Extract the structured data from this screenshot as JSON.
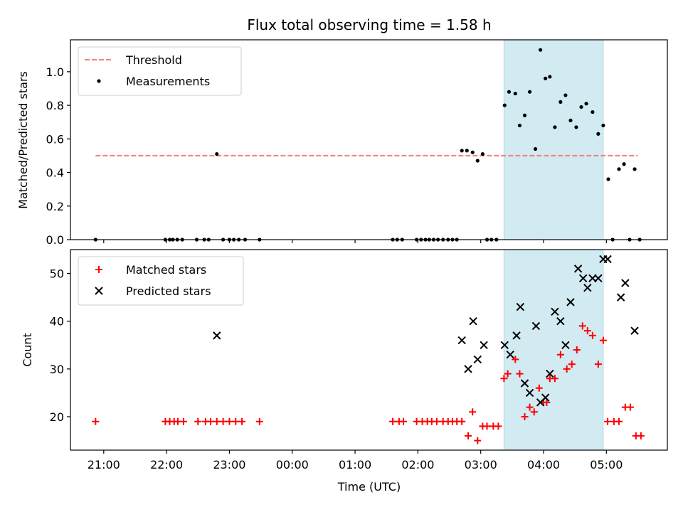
{
  "chart_data": {
    "title": "Flux total observing time = 1.58 h",
    "xlabel": "Time (UTC)",
    "x_unit": "hours (UTC clock, values past 24 wrap past midnight)",
    "x_range": [
      20.47,
      29.97
    ],
    "x_ticks": [
      {
        "value": 21,
        "label": "21:00"
      },
      {
        "value": 22,
        "label": "22:00"
      },
      {
        "value": 23,
        "label": "23:00"
      },
      {
        "value": 24,
        "label": "00:00"
      },
      {
        "value": 25,
        "label": "01:00"
      },
      {
        "value": 26,
        "label": "02:00"
      },
      {
        "value": 27,
        "label": "03:00"
      },
      {
        "value": 28,
        "label": "04:00"
      },
      {
        "value": 29,
        "label": "05:00"
      }
    ],
    "shaded_interval": [
      27.37,
      28.95
    ],
    "shade_color": "#add8e6",
    "panels": [
      {
        "type": "scatter",
        "ylabel": "Matched/Predicted stars",
        "ylim": [
          0,
          1.19
        ],
        "y_ticks": [
          {
            "value": 0.0,
            "label": "0.0"
          },
          {
            "value": 0.2,
            "label": "0.2"
          },
          {
            "value": 0.4,
            "label": "0.4"
          },
          {
            "value": 0.6,
            "label": "0.6"
          },
          {
            "value": 0.8,
            "label": "0.8"
          },
          {
            "value": 1.0,
            "label": "1.0"
          }
        ],
        "legend": "upper left",
        "threshold": {
          "name": "Threshold",
          "y": 0.5,
          "x_range": [
            20.87,
            29.5
          ],
          "color": "#f47f7f"
        },
        "series": [
          {
            "name": "Measurements",
            "marker": "dot",
            "color": "#000000",
            "points": [
              [
                20.87,
                0.0
              ],
              [
                21.98,
                0.0
              ],
              [
                22.05,
                0.0
              ],
              [
                22.1,
                0.0
              ],
              [
                22.17,
                0.0
              ],
              [
                22.25,
                0.0
              ],
              [
                22.48,
                0.0
              ],
              [
                22.6,
                0.0
              ],
              [
                22.67,
                0.0
              ],
              [
                22.8,
                0.51
              ],
              [
                22.9,
                0.0
              ],
              [
                23.0,
                0.0
              ],
              [
                23.07,
                0.0
              ],
              [
                23.15,
                0.0
              ],
              [
                23.25,
                0.0
              ],
              [
                23.48,
                0.0
              ],
              [
                25.6,
                0.0
              ],
              [
                25.67,
                0.0
              ],
              [
                25.75,
                0.0
              ],
              [
                25.98,
                0.0
              ],
              [
                26.05,
                0.0
              ],
              [
                26.12,
                0.0
              ],
              [
                26.18,
                0.0
              ],
              [
                26.25,
                0.0
              ],
              [
                26.32,
                0.0
              ],
              [
                26.4,
                0.0
              ],
              [
                26.48,
                0.0
              ],
              [
                26.55,
                0.0
              ],
              [
                26.62,
                0.0
              ],
              [
                26.7,
                0.53
              ],
              [
                26.78,
                0.53
              ],
              [
                26.87,
                0.52
              ],
              [
                26.95,
                0.47
              ],
              [
                27.03,
                0.51
              ],
              [
                27.1,
                0.0
              ],
              [
                27.17,
                0.0
              ],
              [
                27.25,
                0.0
              ],
              [
                27.38,
                0.8
              ],
              [
                27.45,
                0.88
              ],
              [
                27.55,
                0.87
              ],
              [
                27.62,
                0.68
              ],
              [
                27.7,
                0.74
              ],
              [
                27.78,
                0.88
              ],
              [
                27.87,
                0.54
              ],
              [
                27.95,
                1.13
              ],
              [
                28.03,
                0.96
              ],
              [
                28.1,
                0.97
              ],
              [
                28.18,
                0.67
              ],
              [
                28.27,
                0.82
              ],
              [
                28.35,
                0.86
              ],
              [
                28.43,
                0.71
              ],
              [
                28.52,
                0.67
              ],
              [
                28.6,
                0.79
              ],
              [
                28.68,
                0.81
              ],
              [
                28.78,
                0.76
              ],
              [
                28.87,
                0.63
              ],
              [
                28.95,
                0.68
              ],
              [
                29.03,
                0.36
              ],
              [
                29.1,
                0.0
              ],
              [
                29.2,
                0.42
              ],
              [
                29.28,
                0.45
              ],
              [
                29.37,
                0.0
              ],
              [
                29.45,
                0.42
              ],
              [
                29.53,
                0.0
              ]
            ]
          }
        ]
      },
      {
        "type": "scatter",
        "ylabel": "Count",
        "ylim": [
          13.0,
          55.0
        ],
        "y_ticks": [
          {
            "value": 20,
            "label": "20"
          },
          {
            "value": 30,
            "label": "30"
          },
          {
            "value": 40,
            "label": "40"
          },
          {
            "value": 50,
            "label": "50"
          }
        ],
        "legend": "upper left",
        "series": [
          {
            "name": "Matched stars",
            "marker": "plus",
            "color": "#ff0000",
            "points": [
              [
                20.87,
                19
              ],
              [
                21.98,
                19
              ],
              [
                22.05,
                19
              ],
              [
                22.12,
                19
              ],
              [
                22.18,
                19
              ],
              [
                22.27,
                19
              ],
              [
                22.5,
                19
              ],
              [
                22.62,
                19
              ],
              [
                22.7,
                19
              ],
              [
                22.8,
                19
              ],
              [
                22.9,
                19
              ],
              [
                23.0,
                19
              ],
              [
                23.1,
                19
              ],
              [
                23.2,
                19
              ],
              [
                23.48,
                19
              ],
              [
                25.6,
                19
              ],
              [
                25.7,
                19
              ],
              [
                25.77,
                19
              ],
              [
                25.98,
                19
              ],
              [
                26.07,
                19
              ],
              [
                26.15,
                19
              ],
              [
                26.22,
                19
              ],
              [
                26.3,
                19
              ],
              [
                26.4,
                19
              ],
              [
                26.48,
                19
              ],
              [
                26.55,
                19
              ],
              [
                26.62,
                19
              ],
              [
                26.7,
                19
              ],
              [
                26.8,
                16
              ],
              [
                26.87,
                21
              ],
              [
                26.95,
                15
              ],
              [
                27.03,
                18
              ],
              [
                27.1,
                18
              ],
              [
                27.2,
                18
              ],
              [
                27.28,
                18
              ],
              [
                27.37,
                28
              ],
              [
                27.43,
                29
              ],
              [
                27.55,
                32
              ],
              [
                27.62,
                29
              ],
              [
                27.7,
                20
              ],
              [
                27.78,
                22
              ],
              [
                27.85,
                21
              ],
              [
                27.93,
                26
              ],
              [
                28.0,
                23
              ],
              [
                28.05,
                23
              ],
              [
                28.1,
                28
              ],
              [
                28.18,
                28
              ],
              [
                28.27,
                33
              ],
              [
                28.37,
                30
              ],
              [
                28.45,
                31
              ],
              [
                28.53,
                34
              ],
              [
                28.62,
                39
              ],
              [
                28.7,
                38
              ],
              [
                28.78,
                37
              ],
              [
                28.87,
                31
              ],
              [
                28.95,
                36
              ],
              [
                29.02,
                19
              ],
              [
                29.12,
                19
              ],
              [
                29.2,
                19
              ],
              [
                29.3,
                22
              ],
              [
                29.38,
                22
              ],
              [
                29.47,
                16
              ],
              [
                29.55,
                16
              ]
            ]
          },
          {
            "name": "Predicted stars",
            "marker": "x",
            "color": "#000000",
            "points": [
              [
                22.8,
                37
              ],
              [
                26.7,
                36
              ],
              [
                26.8,
                30
              ],
              [
                26.88,
                40
              ],
              [
                26.95,
                32
              ],
              [
                27.05,
                35
              ],
              [
                27.38,
                35
              ],
              [
                27.47,
                33
              ],
              [
                27.57,
                37
              ],
              [
                27.63,
                43
              ],
              [
                27.7,
                27
              ],
              [
                27.78,
                25
              ],
              [
                27.88,
                39
              ],
              [
                27.95,
                23
              ],
              [
                28.03,
                24
              ],
              [
                28.1,
                29
              ],
              [
                28.18,
                42
              ],
              [
                28.27,
                40
              ],
              [
                28.35,
                35
              ],
              [
                28.43,
                44
              ],
              [
                28.55,
                51
              ],
              [
                28.63,
                49
              ],
              [
                28.7,
                47
              ],
              [
                28.78,
                49
              ],
              [
                28.87,
                49
              ],
              [
                28.95,
                53
              ],
              [
                29.02,
                53
              ],
              [
                29.23,
                45
              ],
              [
                29.3,
                48
              ],
              [
                29.45,
                38
              ]
            ]
          }
        ]
      }
    ]
  }
}
